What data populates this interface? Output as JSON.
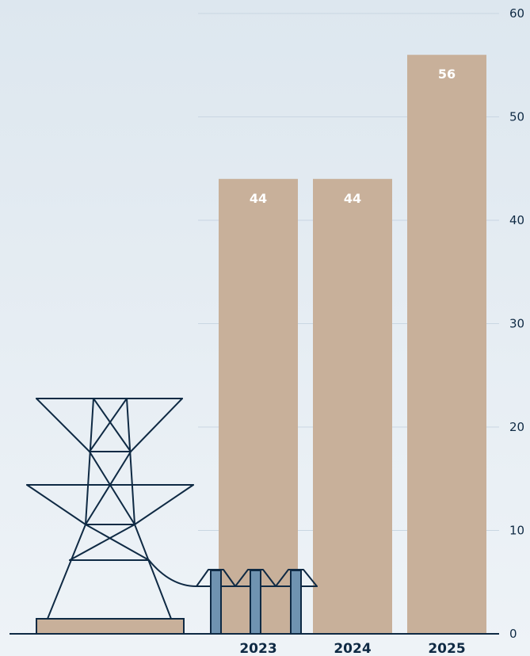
{
  "chart_data": {
    "type": "bar",
    "title": "",
    "xlabel": "",
    "ylabel": "",
    "categories": [
      "2023",
      "2024",
      "2025"
    ],
    "values": [
      44,
      44,
      56
    ],
    "data_labels": [
      "44",
      "44",
      "56"
    ],
    "ylim": [
      0,
      60
    ],
    "yticks": [
      "0",
      "10",
      "20",
      "30",
      "40",
      "50",
      "60"
    ],
    "y_axis_position": "right",
    "grid": true,
    "legend": "none"
  },
  "colors": {
    "bar": "#c8b09a",
    "text": "#0f2a44",
    "grid": "#c9d6e2",
    "axis": "#0f2a44",
    "insulator": "#6f93b1",
    "base": "#c8b09a"
  },
  "decoration": {
    "illustration": "transmission-tower-icon"
  }
}
